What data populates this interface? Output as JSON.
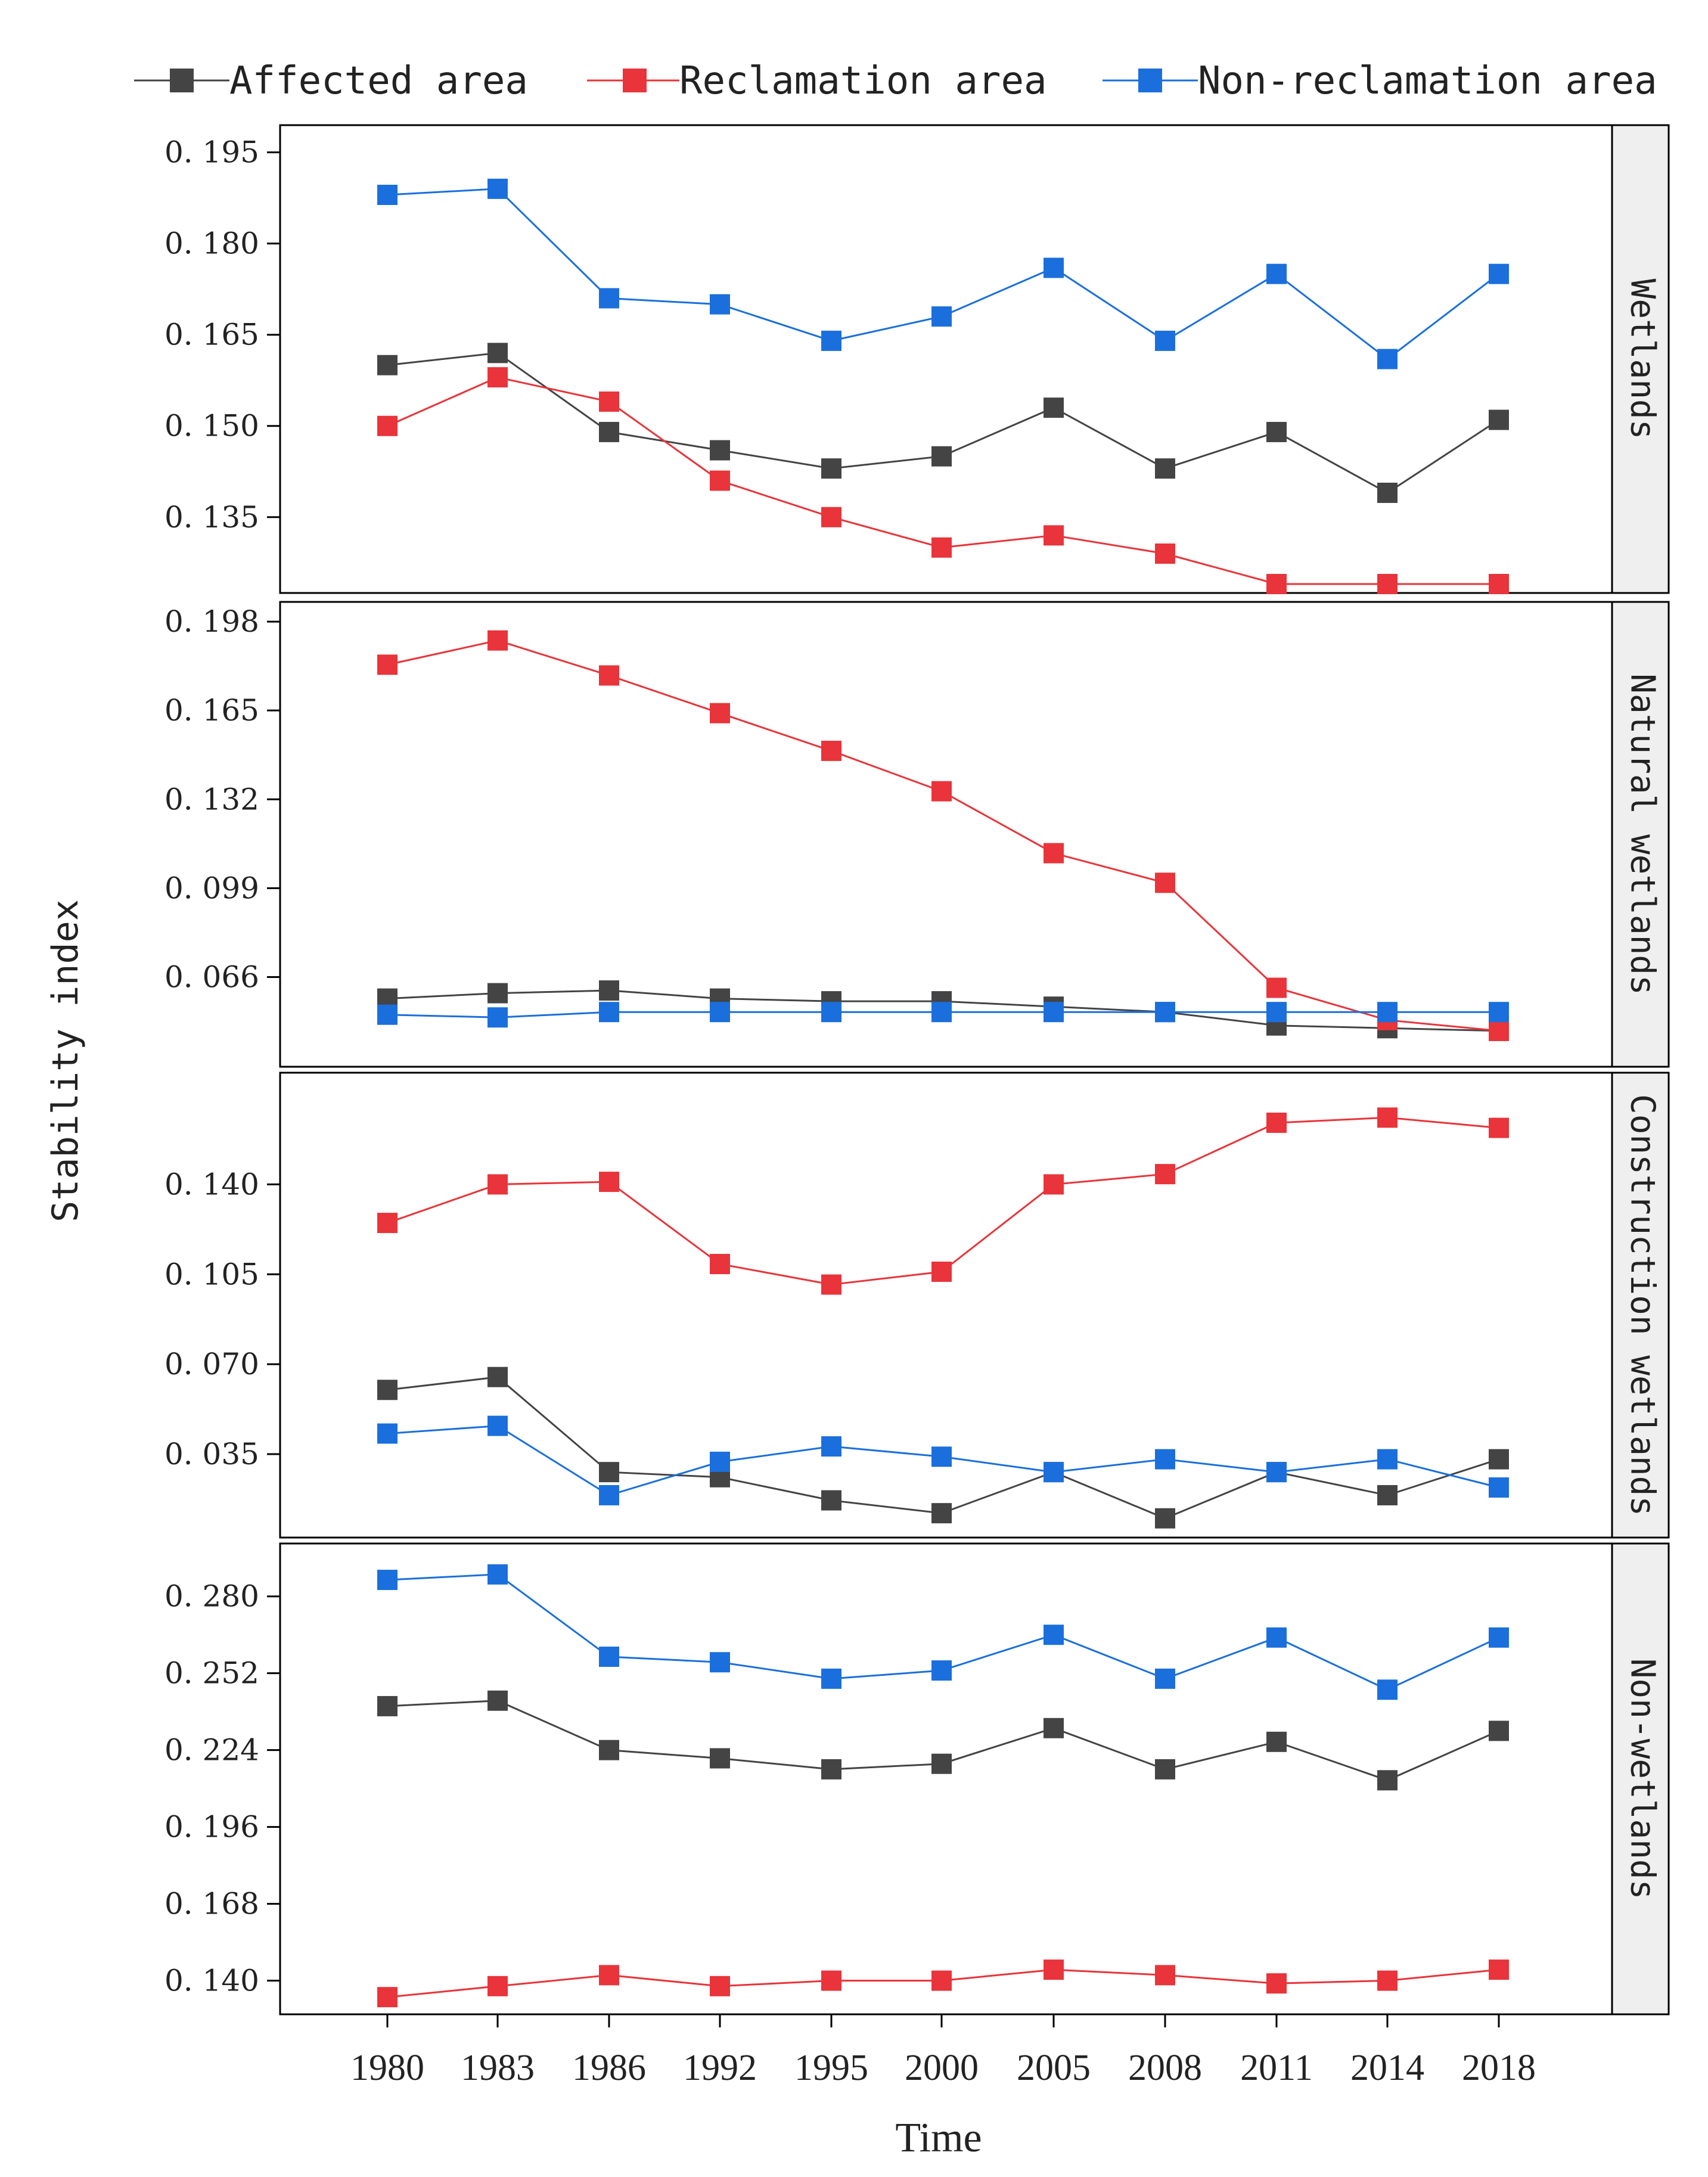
{
  "colors": {
    "affected": "#444444",
    "reclamation": "#e8343a",
    "non_reclamation": "#1a6fdc",
    "strip_bg": "#efefef",
    "axis": "#000000"
  },
  "chart_data": {
    "type": "line",
    "xlabel": "Time",
    "ylabel": "Stability index",
    "legend_position": "top",
    "categories": [
      "1980",
      "1983",
      "1986",
      "1992",
      "1995",
      "2000",
      "2005",
      "2008",
      "2011",
      "2014",
      "2018"
    ],
    "legend": [
      "Affected area",
      "Reclamation area",
      "Non-reclamation area"
    ],
    "panels": [
      {
        "strip": "Wetlands",
        "ylim": [
          0.124,
          0.198
        ],
        "yticks": [
          "0. 195",
          "0. 180",
          "0. 165",
          "0. 150",
          "0. 135"
        ],
        "ytick_values": [
          0.195,
          0.18,
          0.165,
          0.15,
          0.135
        ],
        "series": [
          {
            "name": "Affected area",
            "values": [
              0.16,
              0.162,
              0.149,
              0.146,
              0.143,
              0.145,
              0.153,
              0.143,
              0.149,
              0.139,
              0.151
            ]
          },
          {
            "name": "Reclamation area",
            "values": [
              0.15,
              0.158,
              0.154,
              0.141,
              0.135,
              0.13,
              0.132,
              0.129,
              0.124,
              0.124,
              0.124
            ]
          },
          {
            "name": "Non-reclamation area",
            "values": [
              0.188,
              0.189,
              0.171,
              0.17,
              0.164,
              0.168,
              0.176,
              0.164,
              0.175,
              0.161,
              0.175
            ]
          }
        ]
      },
      {
        "strip": "Natural wetlands",
        "ylim": [
          0.036,
          0.202
        ],
        "yticks": [
          "0. 198",
          "0. 165",
          "0. 132",
          "0. 099",
          "0. 066"
        ],
        "ytick_values": [
          0.198,
          0.165,
          0.132,
          0.099,
          0.066
        ],
        "series": [
          {
            "name": "Affected area",
            "values": [
              0.058,
              0.06,
              0.061,
              0.058,
              0.057,
              0.057,
              0.055,
              0.053,
              0.048,
              0.047,
              0.046
            ]
          },
          {
            "name": "Reclamation area",
            "values": [
              0.182,
              0.191,
              0.178,
              0.164,
              0.15,
              0.135,
              0.112,
              0.101,
              0.062,
              0.05,
              0.046
            ]
          },
          {
            "name": "Non-reclamation area",
            "values": [
              0.052,
              0.051,
              0.053,
              0.053,
              0.053,
              0.053,
              0.053,
              0.053,
              0.053,
              0.053,
              0.053
            ]
          }
        ]
      },
      {
        "strip": "Construction wetlands",
        "ylim": [
          0.006,
          0.18
        ],
        "yticks": [
          "0. 140",
          "0. 105",
          "0. 070",
          "0. 035"
        ],
        "ytick_values": [
          0.14,
          0.105,
          0.07,
          0.035
        ],
        "series": [
          {
            "name": "Affected area",
            "values": [
              0.06,
              0.065,
              0.028,
              0.026,
              0.017,
              0.012,
              0.028,
              0.01,
              0.028,
              0.019,
              0.033
            ]
          },
          {
            "name": "Reclamation area",
            "values": [
              0.125,
              0.14,
              0.141,
              0.109,
              0.101,
              0.106,
              0.14,
              0.144,
              0.164,
              0.166,
              0.162
            ]
          },
          {
            "name": "Non-reclamation area",
            "values": [
              0.043,
              0.046,
              0.019,
              0.032,
              0.038,
              0.034,
              0.028,
              0.033,
              0.028,
              0.033,
              0.022
            ]
          }
        ]
      },
      {
        "strip": "Non-wetlands",
        "ylim": [
          0.131,
          0.296
        ],
        "yticks": [
          "0. 280",
          "0. 252",
          "0. 224",
          "0. 196",
          "0. 168",
          "0. 140"
        ],
        "ytick_values": [
          0.28,
          0.252,
          0.224,
          0.196,
          0.168,
          0.14
        ],
        "series": [
          {
            "name": "Affected area",
            "values": [
              0.24,
              0.242,
              0.224,
              0.221,
              0.217,
              0.219,
              0.232,
              0.217,
              0.227,
              0.213,
              0.231
            ]
          },
          {
            "name": "Reclamation area",
            "values": [
              0.134,
              0.138,
              0.142,
              0.138,
              0.14,
              0.14,
              0.144,
              0.142,
              0.139,
              0.14,
              0.144
            ]
          },
          {
            "name": "Non-reclamation area",
            "values": [
              0.286,
              0.288,
              0.258,
              0.256,
              0.25,
              0.253,
              0.266,
              0.25,
              0.265,
              0.246,
              0.265
            ]
          }
        ]
      }
    ]
  }
}
